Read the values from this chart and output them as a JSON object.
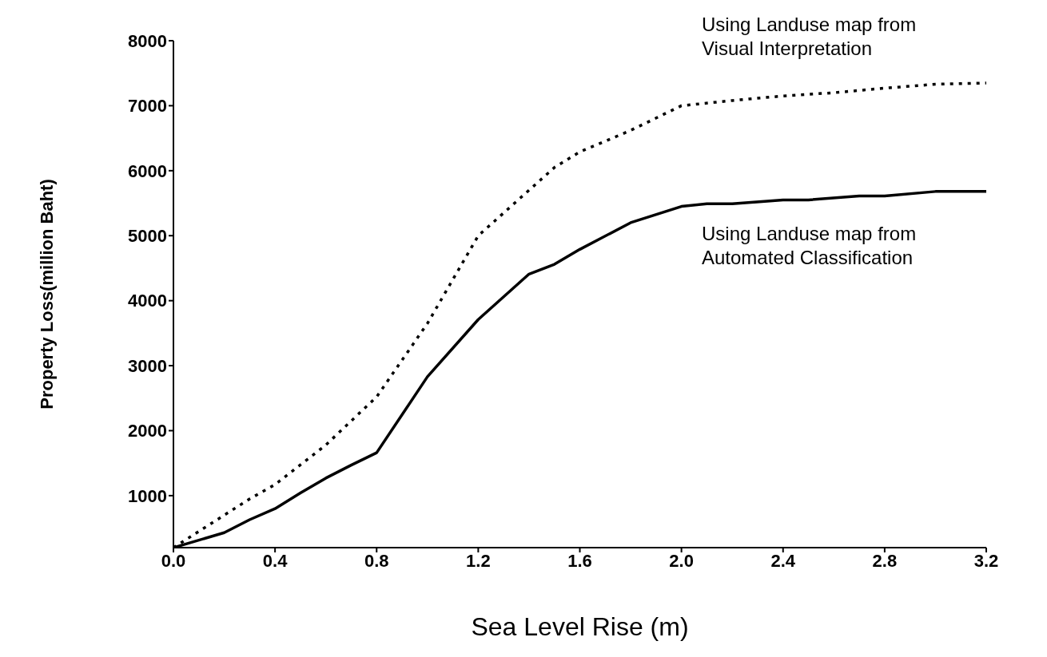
{
  "chart_data": {
    "type": "line",
    "xlabel": "Sea Level Rise (m)",
    "ylabel": "Property Loss(million Baht)",
    "xlim": [
      0,
      3.2
    ],
    "xticks": [
      {
        "value": 0,
        "label": "0.0"
      },
      0.4,
      0.8,
      1.2,
      1.6,
      {
        "value": 2,
        "label": "2.0"
      },
      2.4,
      2.8,
      3.2
    ],
    "ylim": [
      200,
      8000
    ],
    "yticks": [
      1000,
      2000,
      3000,
      4000,
      5000,
      6000,
      7000,
      8000
    ],
    "grid": false,
    "legend": false,
    "marker": "none",
    "series": [
      {
        "name": "Using Landuse map from Visual Interpretation",
        "color": "#000000",
        "line_style": "dotted",
        "x": [
          0,
          0.2,
          0.3,
          0.4,
          0.6,
          0.8,
          1.0,
          1.2,
          1.5,
          1.6,
          1.8,
          2.0,
          2.2,
          2.4,
          2.6,
          2.8,
          3.0,
          3.2
        ],
        "values": [
          200,
          700,
          950,
          1170,
          1780,
          2520,
          3650,
          5000,
          6050,
          6290,
          6620,
          7000,
          7080,
          7150,
          7200,
          7270,
          7330,
          7350
        ]
      },
      {
        "name": "Using Landuse map from Automated Classification",
        "color": "#000000",
        "line_style": "solid",
        "x": [
          0,
          0.2,
          0.3,
          0.4,
          0.5,
          0.6,
          0.7,
          0.8,
          1.0,
          1.2,
          1.4,
          1.5,
          1.6,
          1.8,
          2.0,
          2.1,
          2.2,
          2.4,
          2.5,
          2.7,
          2.8,
          3.0,
          3.2
        ],
        "values": [
          200,
          430,
          630,
          800,
          1040,
          1270,
          1470,
          1660,
          2830,
          3710,
          4410,
          4560,
          4790,
          5200,
          5450,
          5490,
          5490,
          5550,
          5550,
          5610,
          5610,
          5680,
          5680
        ]
      }
    ]
  }
}
